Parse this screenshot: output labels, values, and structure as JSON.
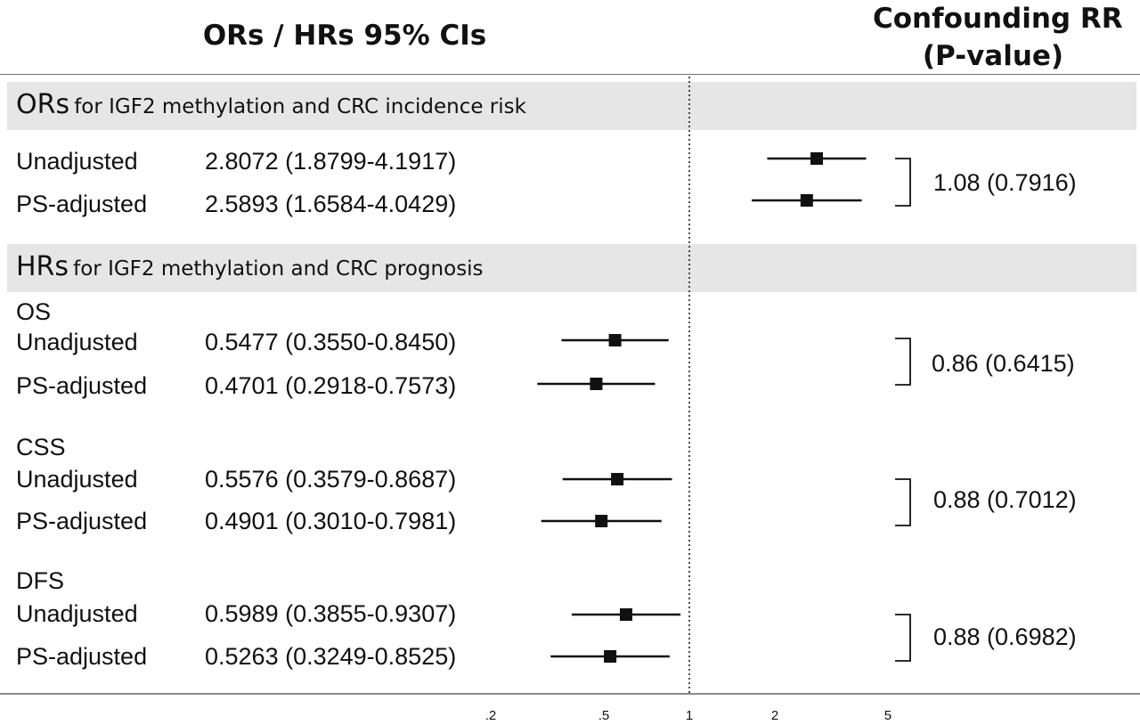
{
  "header": {
    "title": "ORs / HRs  95% CIs",
    "rr_title_line1": "Confounding RR",
    "rr_title_line2": "(P-value)"
  },
  "sections": [
    {
      "abbr": "ORs",
      "desc": "for IGF2 methylation and CRC incidence risk"
    },
    {
      "abbr": "HRs",
      "desc": "for IGF2 methylation and CRC prognosis"
    }
  ],
  "groups": [
    "OS",
    "CSS",
    "DFS"
  ],
  "chart_data": {
    "type": "forest",
    "x_scale": "log",
    "reference_line": 1,
    "x_ticks": [
      0.2,
      0.5,
      1,
      2,
      5
    ],
    "x_tick_labels": [
      ".2",
      ".5",
      "1",
      "2",
      "5"
    ],
    "rows": [
      {
        "section": "ORs",
        "group": "",
        "label": "Unadjusted",
        "estimate_text": "2.8072 (1.8799-4.1917)",
        "est": 2.8072,
        "lo": 1.8799,
        "hi": 4.1917
      },
      {
        "section": "ORs",
        "group": "",
        "label": "PS-adjusted",
        "estimate_text": "2.5893 (1.6584-4.0429)",
        "est": 2.5893,
        "lo": 1.6584,
        "hi": 4.0429
      },
      {
        "section": "HRs",
        "group": "OS",
        "label": "Unadjusted",
        "estimate_text": "0.5477 (0.3550-0.8450)",
        "est": 0.5477,
        "lo": 0.355,
        "hi": 0.845
      },
      {
        "section": "HRs",
        "group": "OS",
        "label": "PS-adjusted",
        "estimate_text": "0.4701 (0.2918-0.7573)",
        "est": 0.4701,
        "lo": 0.2918,
        "hi": 0.7573
      },
      {
        "section": "HRs",
        "group": "CSS",
        "label": "Unadjusted",
        "estimate_text": "0.5576 (0.3579-0.8687)",
        "est": 0.5576,
        "lo": 0.3579,
        "hi": 0.8687
      },
      {
        "section": "HRs",
        "group": "CSS",
        "label": "PS-adjusted",
        "estimate_text": "0.4901 (0.3010-0.7981)",
        "est": 0.4901,
        "lo": 0.301,
        "hi": 0.7981
      },
      {
        "section": "HRs",
        "group": "DFS",
        "label": "Unadjusted",
        "estimate_text": "0.5989 (0.3855-0.9307)",
        "est": 0.5989,
        "lo": 0.3855,
        "hi": 0.9307
      },
      {
        "section": "HRs",
        "group": "DFS",
        "label": "PS-adjusted",
        "estimate_text": "0.5263 (0.3249-0.8525)",
        "est": 0.5263,
        "lo": 0.3249,
        "hi": 0.8525
      }
    ],
    "confounding_rr": [
      "1.08 (0.7916)",
      "0.86 (0.6415)",
      "0.88 (0.7012)",
      "0.88 (0.6982)"
    ]
  }
}
